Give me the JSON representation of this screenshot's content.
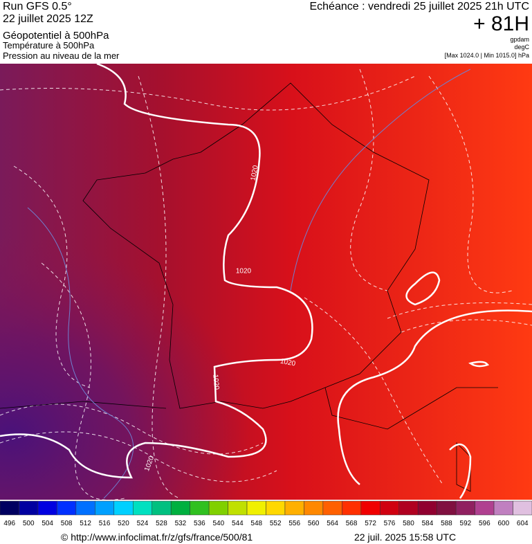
{
  "header": {
    "run": "Run GFS 0.5°",
    "run_date": "22 juillet 2025 12Z",
    "layer1": "Géopotentiel à 500hPa",
    "layer2": "Température à 500hPa",
    "layer3": "Pression au niveau de la mer",
    "valid": "Echéance : vendredi 25 juillet 2025 21h UTC",
    "lead": "+ 81H",
    "unit1": "gpdam",
    "unit2": "degC",
    "range": "[Max 1024.0 | Min 1015.0] hPa"
  },
  "map": {
    "contour_labels": [
      "1020",
      "1020",
      "1020",
      "1020",
      "1020"
    ]
  },
  "colorbar": {
    "labels": [
      496,
      500,
      504,
      508,
      512,
      516,
      520,
      524,
      528,
      532,
      536,
      540,
      544,
      548,
      552,
      556,
      560,
      564,
      568,
      572,
      576,
      580,
      584,
      588,
      592,
      596,
      600,
      604
    ],
    "colors": [
      "#000060",
      "#0000a0",
      "#0000e0",
      "#0030ff",
      "#0070ff",
      "#00a0ff",
      "#00d0ff",
      "#00e0c0",
      "#00c080",
      "#00b040",
      "#30c020",
      "#80d000",
      "#c0e000",
      "#f0f000",
      "#ffd800",
      "#ffb000",
      "#ff8800",
      "#ff6000",
      "#ff3000",
      "#f00000",
      "#d00010",
      "#b00020",
      "#900030",
      "#801040",
      "#902060",
      "#b04090",
      "#c080c0",
      "#e0c0e0"
    ]
  },
  "footer": {
    "url": "© http://www.infoclimat.fr/z/gfs/france/500/81",
    "generated": "22 juil. 2025 15:58 UTC"
  }
}
